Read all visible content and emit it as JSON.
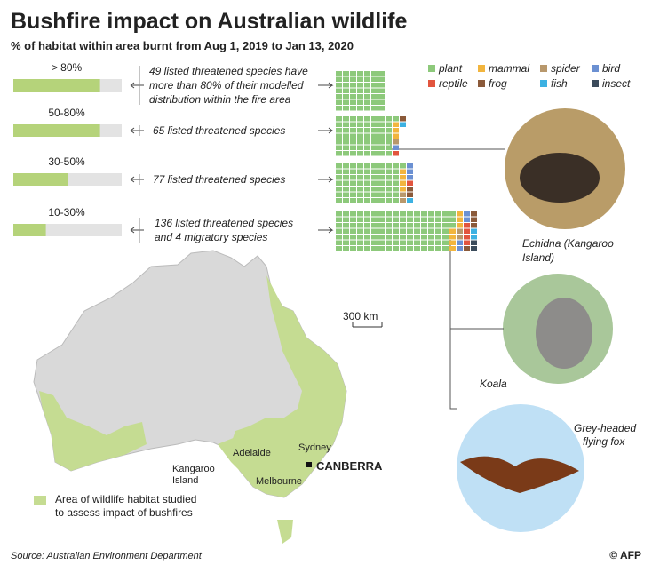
{
  "header": {
    "title": "Bushfire impact on Australian wildlife",
    "subtitle": "% of habitat within area burnt from Aug 1, 2019 to Jan 13,  2020"
  },
  "legend": [
    {
      "name": "plant",
      "color": "#8dc97b"
    },
    {
      "name": "mammal",
      "color": "#f2b53e"
    },
    {
      "name": "spider",
      "color": "#b8986c"
    },
    {
      "name": "bird",
      "color": "#6b90d2"
    },
    {
      "name": "reptile",
      "color": "#e2553e"
    },
    {
      "name": "frog",
      "color": "#8b5a3a"
    },
    {
      "name": "fish",
      "color": "#3cb1e2"
    },
    {
      "name": "insect",
      "color": "#3b4b5b"
    }
  ],
  "rows": [
    {
      "range": "> 80%",
      "fill_pct": 80,
      "description": [
        "49 listed threatened species have",
        "more than 80%  of their modelled",
        "distribution within the fire area"
      ],
      "counts": [
        49,
        0,
        0,
        0,
        0,
        0,
        0,
        0
      ]
    },
    {
      "range": "50-80%",
      "fill_pct": 80,
      "description": [
        "65 listed threatened species"
      ],
      "counts": [
        57,
        3,
        1,
        1,
        1,
        1,
        1,
        0
      ]
    },
    {
      "range": "30-50%",
      "fill_pct": 50,
      "description": [
        "77 listed threatened species"
      ],
      "counts": [
        64,
        4,
        2,
        3,
        1,
        2,
        1,
        0
      ]
    },
    {
      "range": "10-30%",
      "fill_pct": 30,
      "description": [
        "136 listed threatened species",
        "and 4 migratory species"
      ],
      "counts": [
        115,
        7,
        2,
        4,
        4,
        4,
        2,
        2
      ]
    }
  ],
  "animals": [
    {
      "label": [
        "Echidna (Kangaroo",
        "Island)"
      ]
    },
    {
      "label": [
        "Koala"
      ]
    },
    {
      "label": [
        "Grey-headed",
        "flying fox"
      ]
    }
  ],
  "map": {
    "scale": "300 km",
    "cities": [
      "Sydney",
      "Adelaide",
      "Melbourne",
      "Kangaroo",
      "Island",
      "CANBERRA"
    ],
    "legend": [
      "Area of wildlife habitat studied",
      "to assess impact of bushfires"
    ]
  },
  "source": "Source: Australian Environment Department",
  "credit": "© AFP"
}
